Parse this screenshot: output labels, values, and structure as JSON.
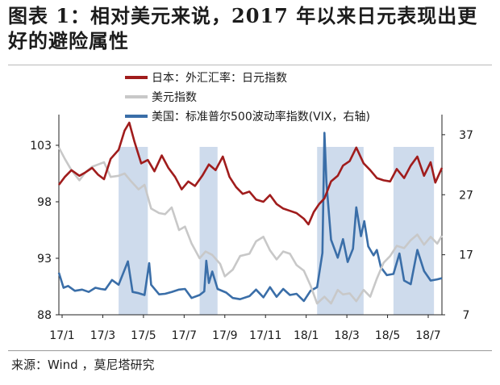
{
  "title": "图表 1：相对美元来说，2017 年以来日元表现出更好的避险属性",
  "source": "来源：Wind ，莫尼塔研究",
  "chart_data": {
    "type": "line",
    "x_tick_labels": [
      "17/1",
      "17/3",
      "17/5",
      "17/7",
      "17/9",
      "17/11",
      "18/1",
      "18/3",
      "18/5",
      "18/7"
    ],
    "x_range": [
      "2017-01-01",
      "2018-08-01"
    ],
    "left_axis": {
      "ticks": [
        88,
        93,
        98,
        103
      ],
      "range": [
        88,
        105
      ]
    },
    "right_axis": {
      "ticks": [
        7,
        17,
        27,
        37
      ],
      "range": [
        7,
        39
      ]
    },
    "legend_position": "top-left",
    "shaded_periods": [
      [
        "2017-04-01",
        "2017-05-15"
      ],
      [
        "2017-08-01",
        "2017-08-28"
      ],
      [
        "2018-01-25",
        "2018-04-05"
      ],
      [
        "2018-05-20",
        "2018-07-20"
      ]
    ],
    "series": [
      {
        "name": "日本：外汇汇率：日元指数",
        "axis": "left",
        "color": "#a01c1c",
        "points": [
          [
            "2017-01-01",
            99.5
          ],
          [
            "2017-01-10",
            100.2
          ],
          [
            "2017-01-20",
            100.8
          ],
          [
            "2017-02-01",
            100.3
          ],
          [
            "2017-02-10",
            100.6
          ],
          [
            "2017-02-20",
            101.0
          ],
          [
            "2017-03-01",
            100.4
          ],
          [
            "2017-03-10",
            100.0
          ],
          [
            "2017-03-20",
            101.8
          ],
          [
            "2017-04-01",
            102.6
          ],
          [
            "2017-04-10",
            104.3
          ],
          [
            "2017-04-17",
            105.0
          ],
          [
            "2017-04-25",
            103.3
          ],
          [
            "2017-05-05",
            101.4
          ],
          [
            "2017-05-15",
            101.7
          ],
          [
            "2017-05-25",
            100.7
          ],
          [
            "2017-06-05",
            102.1
          ],
          [
            "2017-06-15",
            101.0
          ],
          [
            "2017-06-25",
            100.2
          ],
          [
            "2017-07-05",
            99.1
          ],
          [
            "2017-07-15",
            99.8
          ],
          [
            "2017-07-25",
            99.4
          ],
          [
            "2017-08-05",
            100.3
          ],
          [
            "2017-08-15",
            101.3
          ],
          [
            "2017-08-25",
            100.8
          ],
          [
            "2017-09-05",
            102.0
          ],
          [
            "2017-09-15",
            100.2
          ],
          [
            "2017-09-25",
            99.3
          ],
          [
            "2017-10-05",
            98.7
          ],
          [
            "2017-10-15",
            98.9
          ],
          [
            "2017-10-25",
            98.2
          ],
          [
            "2017-11-05",
            98.0
          ],
          [
            "2017-11-15",
            98.6
          ],
          [
            "2017-11-25",
            97.8
          ],
          [
            "2017-12-05",
            97.4
          ],
          [
            "2017-12-15",
            97.2
          ],
          [
            "2017-12-25",
            97.0
          ],
          [
            "2018-01-05",
            96.5
          ],
          [
            "2018-01-12",
            96.0
          ],
          [
            "2018-01-20",
            97.1
          ],
          [
            "2018-01-28",
            97.8
          ],
          [
            "2018-02-05",
            98.3
          ],
          [
            "2018-02-15",
            99.8
          ],
          [
            "2018-02-25",
            100.3
          ],
          [
            "2018-03-05",
            101.2
          ],
          [
            "2018-03-15",
            101.6
          ],
          [
            "2018-03-25",
            102.8
          ],
          [
            "2018-04-05",
            101.4
          ],
          [
            "2018-04-15",
            100.8
          ],
          [
            "2018-04-25",
            100.1
          ],
          [
            "2018-05-05",
            99.9
          ],
          [
            "2018-05-15",
            99.8
          ],
          [
            "2018-05-25",
            100.9
          ],
          [
            "2018-06-05",
            100.1
          ],
          [
            "2018-06-15",
            101.2
          ],
          [
            "2018-06-25",
            102.0
          ],
          [
            "2018-07-05",
            100.3
          ],
          [
            "2018-07-15",
            101.5
          ],
          [
            "2018-07-22",
            99.7
          ],
          [
            "2018-08-01",
            101.0
          ]
        ]
      },
      {
        "name": "美元指数",
        "axis": "left",
        "color": "#c8c8c8",
        "points": [
          [
            "2017-01-01",
            102.8
          ],
          [
            "2017-01-10",
            101.8
          ],
          [
            "2017-01-20",
            100.8
          ],
          [
            "2017-02-01",
            99.9
          ],
          [
            "2017-02-10",
            100.6
          ],
          [
            "2017-02-20",
            101.1
          ],
          [
            "2017-03-01",
            101.3
          ],
          [
            "2017-03-10",
            101.5
          ],
          [
            "2017-03-20",
            100.2
          ],
          [
            "2017-04-01",
            100.3
          ],
          [
            "2017-04-10",
            100.5
          ],
          [
            "2017-04-20",
            99.8
          ],
          [
            "2017-05-01",
            99.1
          ],
          [
            "2017-05-10",
            99.5
          ],
          [
            "2017-05-20",
            97.4
          ],
          [
            "2017-06-01",
            97.0
          ],
          [
            "2017-06-10",
            96.9
          ],
          [
            "2017-06-20",
            97.5
          ],
          [
            "2017-07-01",
            95.5
          ],
          [
            "2017-07-10",
            95.8
          ],
          [
            "2017-07-20",
            94.3
          ],
          [
            "2017-08-01",
            93.0
          ],
          [
            "2017-08-10",
            93.6
          ],
          [
            "2017-08-20",
            93.3
          ],
          [
            "2017-09-01",
            92.5
          ],
          [
            "2017-09-08",
            91.4
          ],
          [
            "2017-09-20",
            92.0
          ],
          [
            "2017-10-01",
            93.2
          ],
          [
            "2017-10-15",
            93.4
          ],
          [
            "2017-10-25",
            94.5
          ],
          [
            "2017-11-05",
            94.9
          ],
          [
            "2017-11-15",
            93.7
          ],
          [
            "2017-11-25",
            92.9
          ],
          [
            "2017-12-05",
            93.6
          ],
          [
            "2017-12-15",
            93.4
          ],
          [
            "2017-12-25",
            92.4
          ],
          [
            "2018-01-05",
            91.9
          ],
          [
            "2018-01-15",
            90.6
          ],
          [
            "2018-01-25",
            89.0
          ],
          [
            "2018-02-05",
            89.6
          ],
          [
            "2018-02-15",
            89.0
          ],
          [
            "2018-02-25",
            90.2
          ],
          [
            "2018-03-05",
            89.8
          ],
          [
            "2018-03-15",
            89.9
          ],
          [
            "2018-03-25",
            89.2
          ],
          [
            "2018-04-05",
            90.2
          ],
          [
            "2018-04-15",
            89.6
          ],
          [
            "2018-04-25",
            91.2
          ],
          [
            "2018-05-05",
            92.6
          ],
          [
            "2018-05-15",
            93.2
          ],
          [
            "2018-05-25",
            94.1
          ],
          [
            "2018-06-05",
            93.9
          ],
          [
            "2018-06-15",
            94.6
          ],
          [
            "2018-06-25",
            95.1
          ],
          [
            "2018-07-05",
            94.2
          ],
          [
            "2018-07-15",
            94.9
          ],
          [
            "2018-07-25",
            94.3
          ],
          [
            "2018-08-01",
            95.0
          ]
        ]
      },
      {
        "name": "美国：标准普尔500波动率指数(VIX，右轴)",
        "axis": "right",
        "color": "#3a6ea8",
        "points": [
          [
            "2017-01-01",
            14.0
          ],
          [
            "2017-01-08",
            11.5
          ],
          [
            "2017-01-15",
            11.8
          ],
          [
            "2017-01-25",
            11.0
          ],
          [
            "2017-02-05",
            11.2
          ],
          [
            "2017-02-15",
            10.8
          ],
          [
            "2017-02-25",
            11.5
          ],
          [
            "2017-03-05",
            11.3
          ],
          [
            "2017-03-12",
            11.2
          ],
          [
            "2017-03-22",
            12.8
          ],
          [
            "2017-04-01",
            12.0
          ],
          [
            "2017-04-10",
            14.5
          ],
          [
            "2017-04-15",
            15.9
          ],
          [
            "2017-04-22",
            10.8
          ],
          [
            "2017-05-01",
            10.6
          ],
          [
            "2017-05-10",
            10.3
          ],
          [
            "2017-05-17",
            15.6
          ],
          [
            "2017-05-20",
            12.0
          ],
          [
            "2017-06-01",
            10.4
          ],
          [
            "2017-06-10",
            10.5
          ],
          [
            "2017-06-20",
            10.8
          ],
          [
            "2017-07-01",
            11.2
          ],
          [
            "2017-07-10",
            11.3
          ],
          [
            "2017-07-20",
            9.8
          ],
          [
            "2017-08-01",
            10.3
          ],
          [
            "2017-08-08",
            10.9
          ],
          [
            "2017-08-11",
            16.0
          ],
          [
            "2017-08-15",
            12.3
          ],
          [
            "2017-08-20",
            14.2
          ],
          [
            "2017-08-28",
            11.3
          ],
          [
            "2017-09-10",
            10.7
          ],
          [
            "2017-09-20",
            9.8
          ],
          [
            "2017-10-01",
            9.6
          ],
          [
            "2017-10-15",
            10.1
          ],
          [
            "2017-10-25",
            11.2
          ],
          [
            "2017-11-05",
            9.9
          ],
          [
            "2017-11-15",
            11.6
          ],
          [
            "2017-11-25",
            10.0
          ],
          [
            "2017-12-05",
            11.3
          ],
          [
            "2017-12-15",
            10.3
          ],
          [
            "2017-12-25",
            10.5
          ],
          [
            "2018-01-05",
            9.3
          ],
          [
            "2018-01-15",
            11.0
          ],
          [
            "2018-01-25",
            11.6
          ],
          [
            "2018-02-02",
            17.3
          ],
          [
            "2018-02-05",
            37.3
          ],
          [
            "2018-02-08",
            29.0
          ],
          [
            "2018-02-15",
            19.5
          ],
          [
            "2018-02-25",
            16.5
          ],
          [
            "2018-03-05",
            19.6
          ],
          [
            "2018-03-12",
            15.8
          ],
          [
            "2018-03-20",
            18.0
          ],
          [
            "2018-03-25",
            24.9
          ],
          [
            "2018-04-01",
            20.1
          ],
          [
            "2018-04-06",
            22.6
          ],
          [
            "2018-04-12",
            18.4
          ],
          [
            "2018-04-20",
            16.9
          ],
          [
            "2018-04-25",
            17.8
          ],
          [
            "2018-05-01",
            14.9
          ],
          [
            "2018-05-10",
            13.6
          ],
          [
            "2018-05-20",
            13.8
          ],
          [
            "2018-05-29",
            17.2
          ],
          [
            "2018-06-05",
            12.7
          ],
          [
            "2018-06-15",
            12.1
          ],
          [
            "2018-06-25",
            17.8
          ],
          [
            "2018-07-05",
            14.3
          ],
          [
            "2018-07-15",
            12.7
          ],
          [
            "2018-07-25",
            12.9
          ],
          [
            "2018-08-01",
            13.1
          ]
        ]
      }
    ]
  }
}
